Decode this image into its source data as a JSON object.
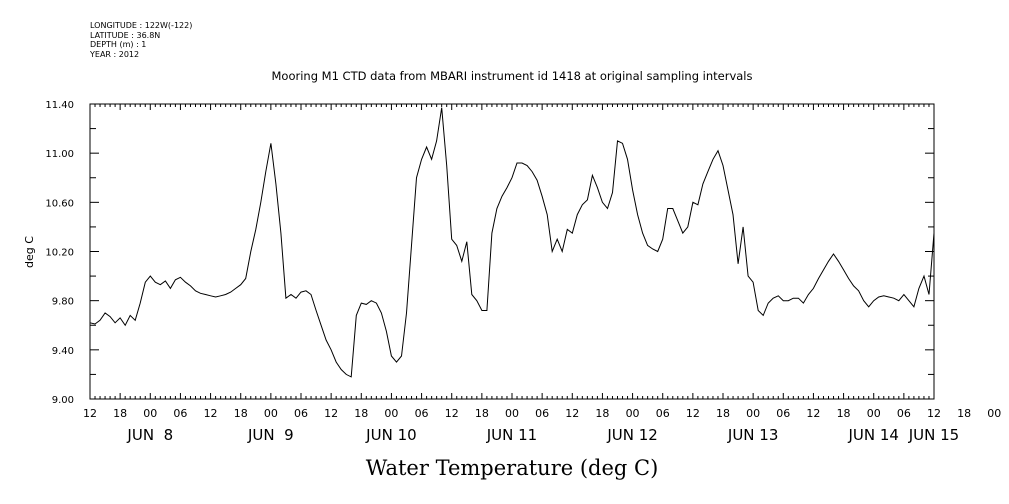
{
  "header": {
    "meta_lines": [
      "LONGITUDE : 122W(-122)",
      "LATITUDE : 36.8N",
      "DEPTH (m) : 1",
      "YEAR : 2012"
    ]
  },
  "chart_data": {
    "type": "line",
    "title": "Mooring M1 CTD data from MBARI instrument id 1418 at original sampling intervals",
    "xlabel": "Water Temperature (deg C)",
    "ylabel": "deg C",
    "ylim": [
      9.0,
      11.4
    ],
    "xlim": [
      0,
      168
    ],
    "x_unit_note": "hours after 12:00 Jun 7, 2012",
    "y_ticks": [
      "9.00",
      "9.40",
      "9.80",
      "10.20",
      "10.60",
      "11.00",
      "11.40"
    ],
    "y_tick_values": [
      9.0,
      9.4,
      9.8,
      10.2,
      10.6,
      11.0,
      11.4
    ],
    "hour_ticks": [
      "12",
      "18",
      "00",
      "06",
      "12",
      "18",
      "00",
      "06",
      "12",
      "18",
      "00",
      "06",
      "12",
      "18",
      "00",
      "06",
      "12",
      "18",
      "00",
      "06",
      "12",
      "18",
      "00",
      "06",
      "12",
      "18",
      "00",
      "06",
      "12",
      "18",
      "00",
      "06",
      "12"
    ],
    "day_labels": [
      {
        "label": "JUN  8",
        "hour": 12
      },
      {
        "label": "JUN  9",
        "hour": 36
      },
      {
        "label": "JUN 10",
        "hour": 60
      },
      {
        "label": "JUN 11",
        "hour": 84
      },
      {
        "label": "JUN 12",
        "hour": 108
      },
      {
        "label": "JUN 13",
        "hour": 132
      },
      {
        "label": "JUN 14",
        "hour": 156
      },
      {
        "label": "JUN 15",
        "hour": 168
      }
    ],
    "grid": false,
    "series": [
      {
        "points": [
          [
            0,
            9.62
          ],
          [
            1,
            9.61
          ],
          [
            2,
            9.64
          ],
          [
            3,
            9.7
          ],
          [
            4,
            9.67
          ],
          [
            5,
            9.62
          ],
          [
            6,
            9.66
          ],
          [
            7,
            9.6
          ],
          [
            8,
            9.68
          ],
          [
            9,
            9.64
          ],
          [
            10,
            9.78
          ],
          [
            11,
            9.95
          ],
          [
            12,
            10.0
          ],
          [
            13,
            9.95
          ],
          [
            14,
            9.93
          ],
          [
            15,
            9.96
          ],
          [
            16,
            9.9
          ],
          [
            17,
            9.97
          ],
          [
            18,
            9.99
          ],
          [
            19,
            9.95
          ],
          [
            20,
            9.92
          ],
          [
            21,
            9.88
          ],
          [
            22,
            9.86
          ],
          [
            23,
            9.85
          ],
          [
            24,
            9.84
          ],
          [
            25,
            9.83
          ],
          [
            26,
            9.84
          ],
          [
            27,
            9.85
          ],
          [
            28,
            9.87
          ],
          [
            29,
            9.9
          ],
          [
            30,
            9.93
          ],
          [
            31,
            9.98
          ],
          [
            32,
            10.2
          ],
          [
            33,
            10.38
          ],
          [
            34,
            10.6
          ],
          [
            35,
            10.85
          ],
          [
            36,
            11.08
          ],
          [
            37,
            10.75
          ],
          [
            38,
            10.35
          ],
          [
            39,
            9.82
          ],
          [
            40,
            9.85
          ],
          [
            41,
            9.82
          ],
          [
            42,
            9.87
          ],
          [
            43,
            9.88
          ],
          [
            44,
            9.85
          ],
          [
            45,
            9.72
          ],
          [
            46,
            9.6
          ],
          [
            47,
            9.48
          ],
          [
            48,
            9.4
          ],
          [
            49,
            9.3
          ],
          [
            50,
            9.24
          ],
          [
            51,
            9.2
          ],
          [
            52,
            9.18
          ],
          [
            53,
            9.68
          ],
          [
            54,
            9.78
          ],
          [
            55,
            9.77
          ],
          [
            56,
            9.8
          ],
          [
            57,
            9.78
          ],
          [
            58,
            9.7
          ],
          [
            59,
            9.55
          ],
          [
            60,
            9.35
          ],
          [
            61,
            9.3
          ],
          [
            62,
            9.35
          ],
          [
            63,
            9.7
          ],
          [
            64,
            10.25
          ],
          [
            65,
            10.8
          ],
          [
            66,
            10.95
          ],
          [
            67,
            11.05
          ],
          [
            68,
            10.95
          ],
          [
            69,
            11.1
          ],
          [
            70,
            11.37
          ],
          [
            71,
            10.9
          ],
          [
            72,
            10.3
          ],
          [
            73,
            10.25
          ],
          [
            74,
            10.12
          ],
          [
            75,
            10.28
          ],
          [
            76,
            9.85
          ],
          [
            77,
            9.8
          ],
          [
            78,
            9.72
          ],
          [
            79,
            9.72
          ],
          [
            80,
            10.35
          ],
          [
            81,
            10.55
          ],
          [
            82,
            10.65
          ],
          [
            83,
            10.72
          ],
          [
            84,
            10.8
          ],
          [
            85,
            10.92
          ],
          [
            86,
            10.92
          ],
          [
            87,
            10.9
          ],
          [
            88,
            10.85
          ],
          [
            89,
            10.78
          ],
          [
            90,
            10.65
          ],
          [
            91,
            10.5
          ],
          [
            92,
            10.2
          ],
          [
            93,
            10.3
          ],
          [
            94,
            10.2
          ],
          [
            95,
            10.38
          ],
          [
            96,
            10.35
          ],
          [
            97,
            10.5
          ],
          [
            98,
            10.58
          ],
          [
            99,
            10.62
          ],
          [
            100,
            10.82
          ],
          [
            101,
            10.72
          ],
          [
            102,
            10.6
          ],
          [
            103,
            10.55
          ],
          [
            104,
            10.68
          ],
          [
            105,
            11.1
          ],
          [
            106,
            11.08
          ],
          [
            107,
            10.95
          ],
          [
            108,
            10.7
          ],
          [
            109,
            10.5
          ],
          [
            110,
            10.35
          ],
          [
            111,
            10.25
          ],
          [
            112,
            10.22
          ],
          [
            113,
            10.2
          ],
          [
            114,
            10.3
          ],
          [
            115,
            10.55
          ],
          [
            116,
            10.55
          ],
          [
            117,
            10.45
          ],
          [
            118,
            10.35
          ],
          [
            119,
            10.4
          ],
          [
            120,
            10.6
          ],
          [
            121,
            10.58
          ],
          [
            122,
            10.75
          ],
          [
            123,
            10.85
          ],
          [
            124,
            10.95
          ],
          [
            125,
            11.02
          ],
          [
            126,
            10.9
          ],
          [
            127,
            10.7
          ],
          [
            128,
            10.5
          ],
          [
            129,
            10.1
          ],
          [
            130,
            10.4
          ],
          [
            131,
            10.0
          ],
          [
            132,
            9.95
          ],
          [
            133,
            9.72
          ],
          [
            134,
            9.68
          ],
          [
            135,
            9.78
          ],
          [
            136,
            9.82
          ],
          [
            137,
            9.84
          ],
          [
            138,
            9.8
          ],
          [
            139,
            9.8
          ],
          [
            140,
            9.82
          ],
          [
            141,
            9.82
          ],
          [
            142,
            9.78
          ],
          [
            143,
            9.85
          ],
          [
            144,
            9.9
          ],
          [
            145,
            9.98
          ],
          [
            146,
            10.05
          ],
          [
            147,
            10.12
          ],
          [
            148,
            10.18
          ],
          [
            149,
            10.12
          ],
          [
            150,
            10.05
          ],
          [
            151,
            9.98
          ],
          [
            152,
            9.92
          ],
          [
            153,
            9.88
          ],
          [
            154,
            9.8
          ],
          [
            155,
            9.75
          ],
          [
            156,
            9.8
          ],
          [
            157,
            9.83
          ],
          [
            158,
            9.84
          ],
          [
            159,
            9.83
          ],
          [
            160,
            9.82
          ],
          [
            161,
            9.8
          ],
          [
            162,
            9.85
          ],
          [
            163,
            9.8
          ],
          [
            164,
            9.75
          ],
          [
            165,
            9.9
          ],
          [
            166,
            10.0
          ],
          [
            167,
            9.85
          ],
          [
            168,
            10.35
          ]
        ]
      }
    ]
  }
}
